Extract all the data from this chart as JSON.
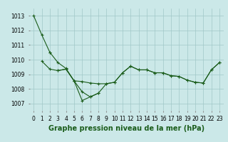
{
  "bg_color": "#cbe8e8",
  "grid_color": "#a0c8c8",
  "line_color": "#1a5c1a",
  "xlabel": "Graphe pression niveau de la mer (hPa)",
  "xlabel_fontsize": 7,
  "ylabel_ticks": [
    1007,
    1008,
    1009,
    1010,
    1011,
    1012,
    1013
  ],
  "xticks": [
    0,
    1,
    2,
    3,
    4,
    5,
    6,
    7,
    8,
    9,
    10,
    11,
    12,
    13,
    14,
    15,
    16,
    17,
    18,
    19,
    20,
    21,
    22,
    23
  ],
  "ylim": [
    1006.5,
    1013.5
  ],
  "xlim": [
    -0.5,
    23.5
  ],
  "series": [
    [
      1013.0,
      1011.7,
      1010.5,
      null,
      null,
      null,
      null,
      null,
      null,
      null,
      null,
      null,
      null,
      null,
      null,
      null,
      null,
      null,
      null,
      null,
      null,
      null,
      null,
      null
    ],
    [
      null,
      null,
      1010.5,
      1009.8,
      1009.4,
      1008.55,
      1007.8,
      1007.45,
      1007.7,
      null,
      null,
      null,
      null,
      null,
      null,
      null,
      null,
      null,
      null,
      null,
      null,
      null,
      null,
      null
    ],
    [
      null,
      1009.9,
      1009.35,
      1009.25,
      1009.35,
      1008.55,
      1008.5,
      1008.4,
      1008.35,
      1008.35,
      1008.45,
      1009.1,
      1009.55,
      1009.3,
      1009.3,
      1009.1,
      1009.1,
      1008.9,
      1008.85,
      1008.6,
      1008.45,
      1008.4,
      1009.3,
      1009.8
    ],
    [
      null,
      null,
      null,
      1009.25,
      1009.35,
      1008.55,
      1007.2,
      1007.45,
      1007.7,
      1008.35,
      1008.45,
      1009.1,
      1009.55,
      1009.3,
      1009.3,
      1009.1,
      1009.1,
      1008.9,
      1008.85,
      1008.6,
      1008.45,
      1008.4,
      1009.3,
      1009.8
    ]
  ],
  "marker": "+",
  "markersize": 3,
  "linewidth": 0.8,
  "tick_fontsize": 5.5
}
